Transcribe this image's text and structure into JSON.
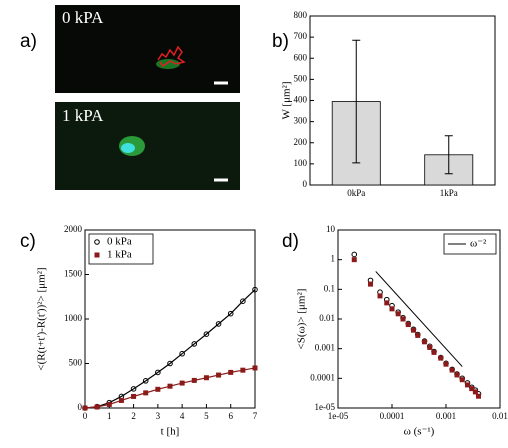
{
  "panels": [
    "a)",
    "b)",
    "c)",
    "d)"
  ],
  "images": [
    {
      "label": "0 kPA"
    },
    {
      "label": "1 kPA"
    }
  ],
  "chart_data": [
    {
      "type": "bar",
      "categories": [
        "0kPa",
        "1kPa"
      ],
      "values": [
        395,
        143
      ],
      "errors": [
        290,
        90
      ],
      "color": "#d9d9d9",
      "ylabel": "W [μm²]",
      "ylim": [
        0,
        800
      ],
      "yticks": [
        0,
        100,
        200,
        300,
        400,
        500,
        600,
        700,
        800
      ],
      "grid": false
    },
    {
      "type": "line",
      "x": [
        0,
        0.5,
        1,
        1.5,
        2,
        2.5,
        3,
        3.5,
        4,
        4.5,
        5,
        5.5,
        6,
        6.5,
        7
      ],
      "series": [
        {
          "name": "0 kPa",
          "color": "#000000",
          "marker": "circle",
          "values": [
            0,
            15,
            60,
            130,
            215,
            305,
            400,
            500,
            610,
            720,
            830,
            945,
            1060,
            1200,
            1330
          ]
        },
        {
          "name": "1 kPa",
          "color": "#8b1a1a",
          "marker": "square",
          "values": [
            0,
            12,
            40,
            85,
            130,
            170,
            210,
            245,
            280,
            310,
            340,
            370,
            400,
            425,
            450
          ]
        }
      ],
      "xlabel": "t [h]",
      "ylabel": "<(R(t+t')-R(t'))²>  [μm²]",
      "xlim": [
        0,
        7
      ],
      "xticks": [
        0,
        1,
        2,
        3,
        4,
        5,
        6,
        7
      ],
      "ylim": [
        0,
        2000
      ],
      "yticks": [
        0,
        500,
        1000,
        1500,
        2000
      ],
      "legend": "upper left",
      "grid": false
    },
    {
      "type": "scatter",
      "log_x": true,
      "log_y": true,
      "series": [
        {
          "color": "#000000",
          "marker": "circle",
          "x": [
            2e-05,
            4e-05,
            6e-05,
            8e-05,
            0.0001,
            0.00013,
            0.00016,
            0.0002,
            0.00025,
            0.0003,
            0.0004,
            0.0005,
            0.0006,
            0.0008,
            0.001,
            0.0013,
            0.0016,
            0.002,
            0.0025,
            0.003,
            0.0035,
            0.004
          ],
          "values": [
            1.5,
            0.2,
            0.08,
            0.045,
            0.028,
            0.017,
            0.011,
            0.007,
            0.0045,
            0.003,
            0.0018,
            0.0012,
            0.0008,
            0.0005,
            0.00032,
            0.0002,
            0.00014,
            0.0001,
            7e-05,
            5e-05,
            4e-05,
            3e-05
          ]
        },
        {
          "color": "#8b1a1a",
          "marker": "square",
          "x": [
            2e-05,
            4e-05,
            6e-05,
            8e-05,
            0.0001,
            0.00013,
            0.00016,
            0.0002,
            0.00025,
            0.0003,
            0.0004,
            0.0005,
            0.0006,
            0.0008,
            0.001,
            0.0013,
            0.0016,
            0.002,
            0.0025,
            0.003,
            0.0035,
            0.004
          ],
          "values": [
            1,
            0.15,
            0.06,
            0.035,
            0.022,
            0.015,
            0.01,
            0.0065,
            0.0042,
            0.0028,
            0.0017,
            0.0011,
            0.00075,
            0.00048,
            0.0003,
            0.00019,
            0.00013,
            9e-05,
            6e-05,
            4.5e-05,
            3.5e-05,
            2.5e-05
          ]
        },
        {
          "name": "ω⁻²",
          "color": "#000000",
          "marker": "line",
          "x": [
            5e-05,
            0.002
          ],
          "values": [
            0.4,
            0.00025
          ]
        }
      ],
      "xlabel": "ω (s⁻¹)",
      "ylabel": "<S(ω)>  [μm²]",
      "xlim": [
        1e-05,
        0.01
      ],
      "xticks": [
        {
          "value": 1e-05,
          "label": "1e-05"
        },
        0.0001,
        0.001,
        0.01
      ],
      "ylim": [
        1e-05,
        10
      ],
      "yticks": [
        {
          "value": 1e-05,
          "label": "1e-05"
        },
        0.0001,
        0.001,
        0.01,
        0.1,
        1,
        10
      ],
      "legend": "upper right",
      "grid": false
    }
  ]
}
